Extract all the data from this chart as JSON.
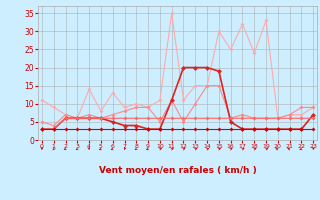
{
  "x": [
    0,
    1,
    2,
    3,
    4,
    5,
    6,
    7,
    8,
    9,
    10,
    11,
    12,
    13,
    14,
    15,
    16,
    17,
    18,
    19,
    20,
    21,
    22,
    23
  ],
  "series": [
    {
      "color": "#ffaaaa",
      "lw": 0.8,
      "ms": 2.0,
      "values": [
        11,
        9,
        7,
        6,
        14,
        8,
        13,
        9,
        10,
        9,
        11,
        35,
        11,
        15,
        15,
        30,
        25,
        32,
        24,
        33,
        6,
        7,
        7,
        9
      ]
    },
    {
      "color": "#ff8888",
      "lw": 0.8,
      "ms": 2.0,
      "values": [
        5,
        4,
        7,
        6,
        7,
        6,
        7,
        8,
        9,
        9,
        5,
        11,
        5,
        10,
        15,
        15,
        6,
        7,
        6,
        6,
        6,
        7,
        9,
        9
      ]
    },
    {
      "color": "#dd2222",
      "lw": 1.2,
      "ms": 2.5,
      "values": [
        3,
        3,
        6,
        6,
        6,
        6,
        5,
        4,
        4,
        3,
        3,
        11,
        20,
        20,
        20,
        19,
        5,
        3,
        3,
        3,
        3,
        3,
        3,
        7
      ]
    },
    {
      "color": "#ff6666",
      "lw": 0.8,
      "ms": 2.0,
      "values": [
        3,
        3,
        6,
        6,
        6,
        6,
        6,
        6,
        6,
        6,
        6,
        6,
        6,
        6,
        6,
        6,
        6,
        6,
        6,
        6,
        6,
        6,
        6,
        6
      ]
    },
    {
      "color": "#cc0000",
      "lw": 0.8,
      "ms": 2.0,
      "values": [
        3,
        3,
        3,
        3,
        3,
        3,
        3,
        3,
        3,
        3,
        3,
        3,
        3,
        3,
        3,
        3,
        3,
        3,
        3,
        3,
        3,
        3,
        3,
        3
      ]
    }
  ],
  "xlabel": "Vent moyen/en rafales ( km/h )",
  "yticks": [
    0,
    5,
    10,
    15,
    20,
    25,
    30,
    35
  ],
  "ylim": [
    0,
    37
  ],
  "xlim": [
    -0.3,
    23.3
  ],
  "bg_color": "#cceeff",
  "grid_color": "#aaaaaa",
  "label_color": "#cc0000",
  "arrow_angles_deg": [
    180,
    200,
    225,
    220,
    175,
    230,
    230,
    190,
    220,
    230,
    55,
    50,
    45,
    50,
    50,
    50,
    45,
    50,
    55,
    55,
    295,
    300,
    230,
    185
  ]
}
